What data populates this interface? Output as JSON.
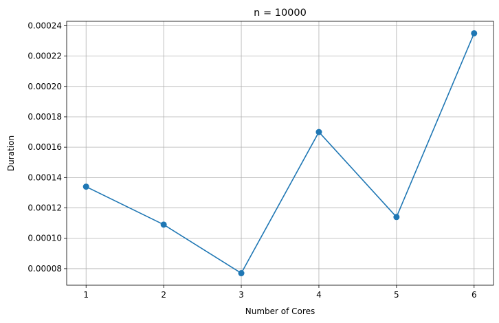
{
  "chart_data": {
    "type": "line",
    "title": "n = 10000",
    "xlabel": "Number of Cores",
    "ylabel": "Duration",
    "x": [
      1,
      2,
      3,
      4,
      5,
      6
    ],
    "series": [
      {
        "values": [
          0.000134,
          0.000109,
          7.7e-05,
          0.00017,
          0.000114,
          0.000235
        ],
        "color": "#1f77b4",
        "marker": "circle"
      }
    ],
    "xticks": [
      1,
      2,
      3,
      4,
      5,
      6
    ],
    "yticks": [
      8e-05,
      0.0001,
      0.00012,
      0.00014,
      0.00016,
      0.00018,
      0.0002,
      0.00022,
      0.00024
    ],
    "ytick_labels": [
      "0.00008",
      "0.00010",
      "0.00012",
      "0.00014",
      "0.00016",
      "0.00018",
      "0.00020",
      "0.00022",
      "0.00024"
    ],
    "xlim": [
      0.75,
      6.25
    ],
    "ylim": [
      6.91e-05,
      0.0002429
    ],
    "grid": true,
    "legend": false
  }
}
